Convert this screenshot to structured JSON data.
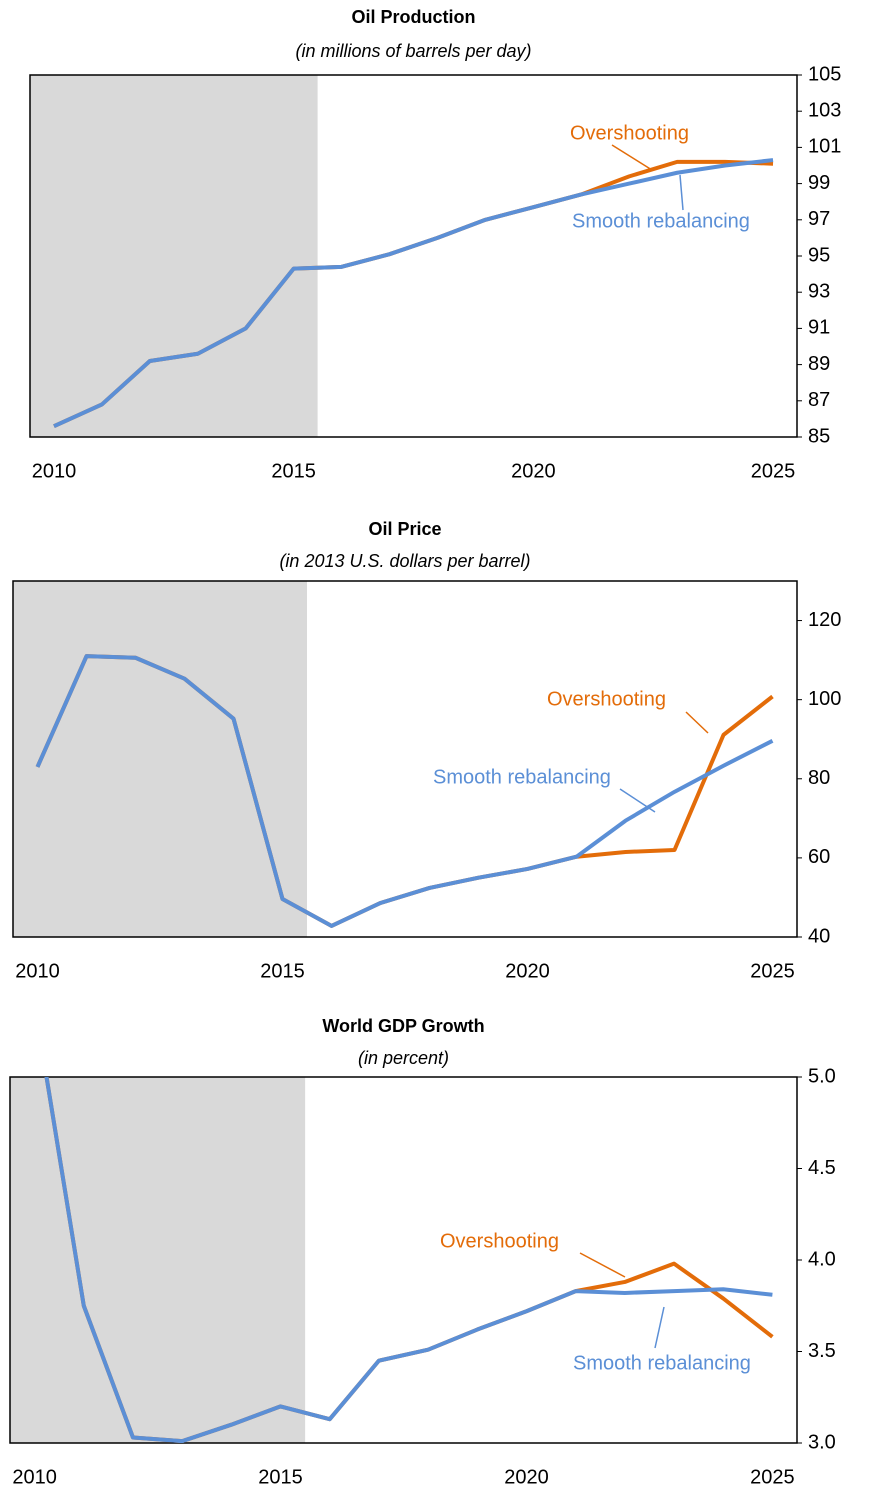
{
  "chart_data": [
    {
      "type": "line",
      "title": "Oil Production",
      "subtitle": "(in millions of barrels per day)",
      "x": [
        2010,
        2011,
        2012,
        2013,
        2014,
        2015,
        2016,
        2017,
        2018,
        2019,
        2020,
        2021,
        2022,
        2023,
        2024,
        2025
      ],
      "series": [
        {
          "name": "Overshooting",
          "color": "#e36c09",
          "values": [
            85.6,
            86.8,
            89.2,
            89.6,
            91.0,
            94.3,
            94.4,
            95.1,
            96.0,
            97.0,
            97.7,
            98.4,
            99.4,
            100.2,
            100.2,
            100.1
          ]
        },
        {
          "name": "Smooth rebalancing",
          "color": "#5b8fd6",
          "values": [
            85.6,
            86.8,
            89.2,
            89.6,
            91.0,
            94.3,
            94.4,
            95.1,
            96.0,
            97.0,
            97.7,
            98.4,
            99.0,
            99.6,
            100.0,
            100.3
          ]
        }
      ],
      "xlim": [
        2009.5,
        2025.5
      ],
      "xticks": [
        2010,
        2015,
        2020,
        2025
      ],
      "ylim": [
        85,
        105
      ],
      "yticks": [
        85,
        87,
        89,
        91,
        93,
        95,
        97,
        99,
        101,
        103,
        105
      ],
      "shaded_xrange": [
        2009.5,
        2015.5
      ],
      "y_axis_side": "right"
    },
    {
      "type": "line",
      "title": "Oil Price",
      "subtitle": "(in 2013 U.S. dollars per barrel)",
      "x": [
        2010,
        2011,
        2012,
        2013,
        2014,
        2015,
        2016,
        2017,
        2018,
        2019,
        2020,
        2021,
        2022,
        2023,
        2024,
        2025
      ],
      "series": [
        {
          "name": "Overshooting",
          "color": "#e36c09",
          "values": [
            83,
            111,
            110.6,
            105.3,
            95.2,
            49.6,
            42.8,
            48.6,
            52.4,
            55,
            57.2,
            60.3,
            61.5,
            62,
            91.1,
            100.8
          ]
        },
        {
          "name": "Smooth rebalancing",
          "color": "#5b8fd6",
          "values": [
            83,
            111,
            110.6,
            105.3,
            95.2,
            49.6,
            42.8,
            48.6,
            52.4,
            55,
            57.2,
            60.3,
            69.4,
            76.7,
            83.3,
            89.6
          ]
        }
      ],
      "xlim": [
        2009.5,
        2025.5
      ],
      "xticks": [
        2010,
        2015,
        2020,
        2025
      ],
      "ylim": [
        40,
        130
      ],
      "yticks": [
        40,
        60,
        80,
        100,
        120
      ],
      "shaded_xrange": [
        2009.5,
        2015.5
      ],
      "y_axis_side": "right"
    },
    {
      "type": "line",
      "title": "World GDP Growth",
      "subtitle": "(in percent)",
      "x": [
        2010,
        2011,
        2012,
        2013,
        2014,
        2015,
        2016,
        2017,
        2018,
        2019,
        2020,
        2021,
        2022,
        2023,
        2024,
        2025
      ],
      "series": [
        {
          "name": "Overshooting",
          "color": "#e36c09",
          "values": [
            5.4,
            3.75,
            3.03,
            3.01,
            3.1,
            3.2,
            3.13,
            3.45,
            3.51,
            3.62,
            3.72,
            3.83,
            3.88,
            3.98,
            3.79,
            3.58
          ]
        },
        {
          "name": "Smooth rebalancing",
          "color": "#5b8fd6",
          "values": [
            5.4,
            3.75,
            3.03,
            3.01,
            3.1,
            3.2,
            3.13,
            3.45,
            3.51,
            3.62,
            3.72,
            3.83,
            3.82,
            3.83,
            3.84,
            3.81
          ]
        }
      ],
      "xlim": [
        2009.5,
        2025.5
      ],
      "xticks": [
        2010,
        2015,
        2020,
        2025
      ],
      "ylim": [
        3,
        5
      ],
      "yticks": [
        {
          "value": 3,
          "label": "3.0"
        },
        {
          "value": 3.5,
          "label": "3.5"
        },
        {
          "value": 4,
          "label": "4.0"
        },
        {
          "value": 4.5,
          "label": "4.5"
        },
        {
          "value": 5,
          "label": "5.0"
        }
      ],
      "shaded_xrange": [
        2009.5,
        2015.5
      ],
      "y_axis_side": "right"
    }
  ]
}
